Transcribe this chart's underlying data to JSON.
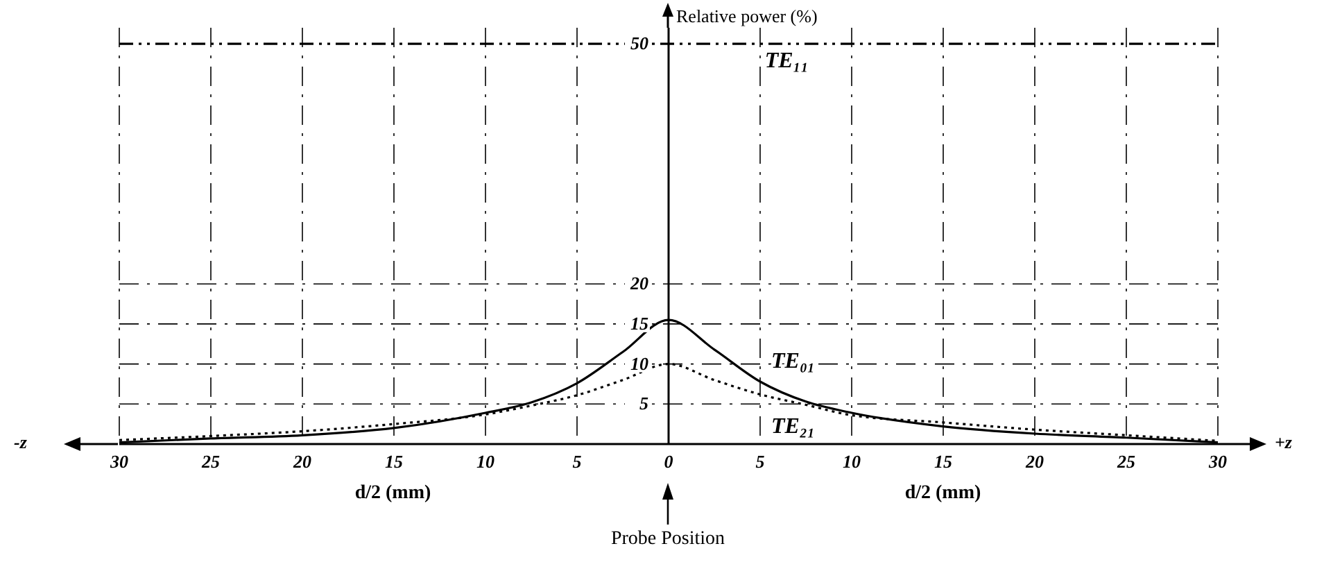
{
  "chart_data": {
    "type": "line",
    "ylabel": "Relative power (%)",
    "xlabel": "d/2 (mm)",
    "x": [
      -30,
      -25,
      -20,
      -15,
      -10,
      -7.5,
      -5,
      -2.5,
      0,
      2.5,
      5,
      7.5,
      10,
      15,
      20,
      25,
      30
    ],
    "series": [
      {
        "name": "TE₀₁",
        "color": "#000000",
        "line_style": "solid",
        "values": [
          0.2,
          0.7,
          1.1,
          2.0,
          3.9,
          5.2,
          7.6,
          11.5,
          15.5,
          11.8,
          7.8,
          5.3,
          3.9,
          2.2,
          1.3,
          0.8,
          0.2
        ]
      },
      {
        "name": "TE₂₁",
        "color": "#000000",
        "line_style": "dotted",
        "values": [
          0.5,
          1.0,
          1.6,
          2.5,
          3.7,
          4.8,
          6.1,
          8.0,
          10,
          8.0,
          6.2,
          4.9,
          3.6,
          2.7,
          1.8,
          1.1,
          0.4
        ]
      },
      {
        "name": "TE₁₁",
        "color": "#000000",
        "line_style": "dashed",
        "x": [
          -30,
          30
        ],
        "values": [
          50,
          50
        ]
      }
    ],
    "xlim": [
      -30,
      30
    ],
    "xticks": [
      {
        "value": -30,
        "label": "30"
      },
      {
        "value": -25,
        "label": "25"
      },
      {
        "value": -20,
        "label": "20"
      },
      {
        "value": -15,
        "label": "15"
      },
      {
        "value": -10,
        "label": "10"
      },
      {
        "value": -5,
        "label": "5"
      },
      0,
      5,
      10,
      15,
      20,
      25,
      30
    ],
    "ylim": [
      0,
      52
    ],
    "yticks": [
      5,
      10,
      15,
      20,
      50
    ],
    "grid": true,
    "marker": "none",
    "annotations": [
      "-z",
      "+z",
      "Probe Position"
    ]
  }
}
